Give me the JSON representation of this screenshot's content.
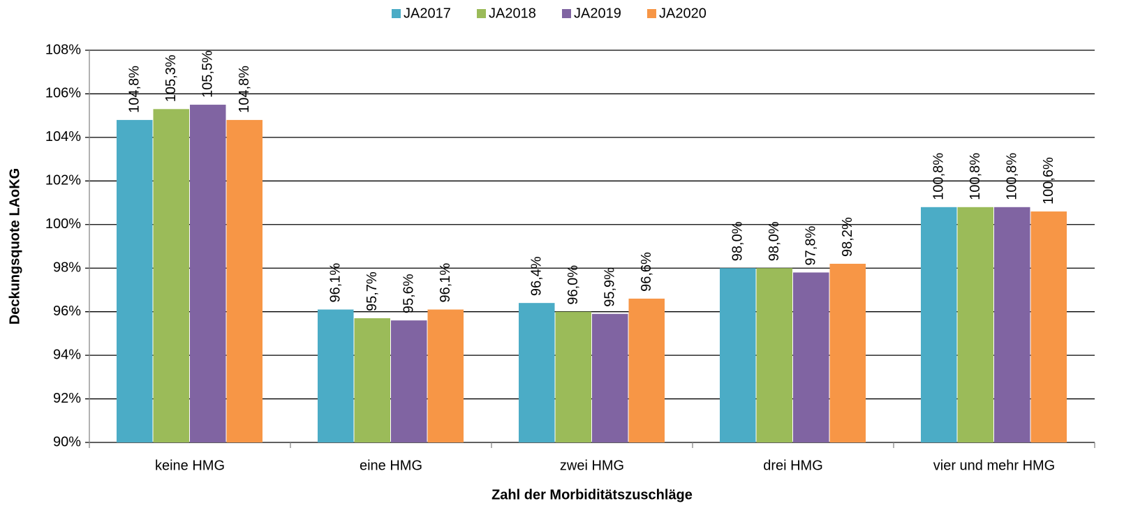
{
  "chart_data": {
    "type": "bar",
    "categories": [
      "keine HMG",
      "eine HMG",
      "zwei HMG",
      "drei HMG",
      "vier und mehr HMG"
    ],
    "series": [
      {
        "name": "JA2017",
        "color": "#4bacc6",
        "values": [
          104.8,
          96.1,
          96.4,
          98.0,
          100.8
        ],
        "value_labels": [
          "104,8%",
          "96,1%",
          "96,4%",
          "98,0%",
          "100,8%"
        ]
      },
      {
        "name": "JA2018",
        "color": "#9bbb59",
        "values": [
          105.3,
          95.7,
          96.0,
          98.0,
          100.8
        ],
        "value_labels": [
          "105,3%",
          "95,7%",
          "96,0%",
          "98,0%",
          "100,8%"
        ]
      },
      {
        "name": "JA2019",
        "color": "#8064a2",
        "values": [
          105.5,
          95.6,
          95.9,
          97.8,
          100.8
        ],
        "value_labels": [
          "105,5%",
          "95,6%",
          "95,9%",
          "97,8%",
          "100,8%"
        ]
      },
      {
        "name": "JA2020",
        "color": "#f79646",
        "values": [
          104.8,
          96.1,
          96.6,
          98.2,
          100.6
        ],
        "value_labels": [
          "104,8%",
          "96,1%",
          "96,6%",
          "98,2%",
          "100,6%"
        ]
      }
    ],
    "ylim": [
      90,
      108
    ],
    "yticks": [
      {
        "value": 90,
        "label": "90%"
      },
      {
        "value": 92,
        "label": "92%"
      },
      {
        "value": 94,
        "label": "94%"
      },
      {
        "value": 96,
        "label": "96%"
      },
      {
        "value": 98,
        "label": "98%"
      },
      {
        "value": 100,
        "label": "100%"
      },
      {
        "value": 102,
        "label": "102%"
      },
      {
        "value": 104,
        "label": "104%"
      },
      {
        "value": 106,
        "label": "106%"
      },
      {
        "value": 108,
        "label": "108%"
      }
    ],
    "grid": true,
    "legend": "top",
    "xlabel": "Zahl der Morbiditätszuschläge",
    "ylabel": "Deckungsquote LAoKG"
  }
}
